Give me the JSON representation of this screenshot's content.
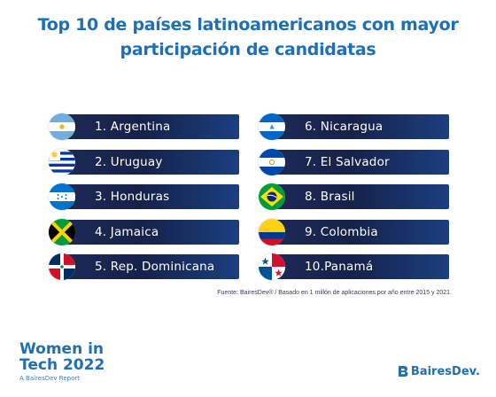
{
  "title_line1": "Top 10 de países latinoamericanos con mayor",
  "title_line2": "participación de candidatas",
  "left_items": [
    {
      "label": "1.  Argentina",
      "flag": "argentina-flag-icon"
    },
    {
      "label": "2.  Uruguay",
      "flag": "uruguay-flag-icon"
    },
    {
      "label": "3.  Honduras",
      "flag": "honduras-flag-icon"
    },
    {
      "label": "4.  Jamaica",
      "flag": "jamaica-flag-icon"
    },
    {
      "label": "5.  Rep. Dominicana",
      "flag": "dominican-republic-flag-icon"
    }
  ],
  "right_items": [
    {
      "label": "6.  Nicaragua",
      "flag": "nicaragua-flag-icon"
    },
    {
      "label": "7.  El Salvador",
      "flag": "el-salvador-flag-icon"
    },
    {
      "label": "8.  Brasil",
      "flag": "brazil-flag-icon"
    },
    {
      "label": "9.  Colombia",
      "flag": "colombia-flag-icon"
    },
    {
      "label": "10.Panamá",
      "flag": "panama-flag-icon"
    }
  ],
  "source": "Fuente: BairesDev® / Basado en 1 millón de aplicaciones por año entre 2015 y 2021.",
  "footer": {
    "title_line1": "Women in",
    "title_line2": "Tech 2022",
    "subtitle": "A BairesDev Report",
    "logo_text": "BairesDev."
  },
  "colors": {
    "title": "#1f6fb5",
    "bar": "#16224a"
  }
}
